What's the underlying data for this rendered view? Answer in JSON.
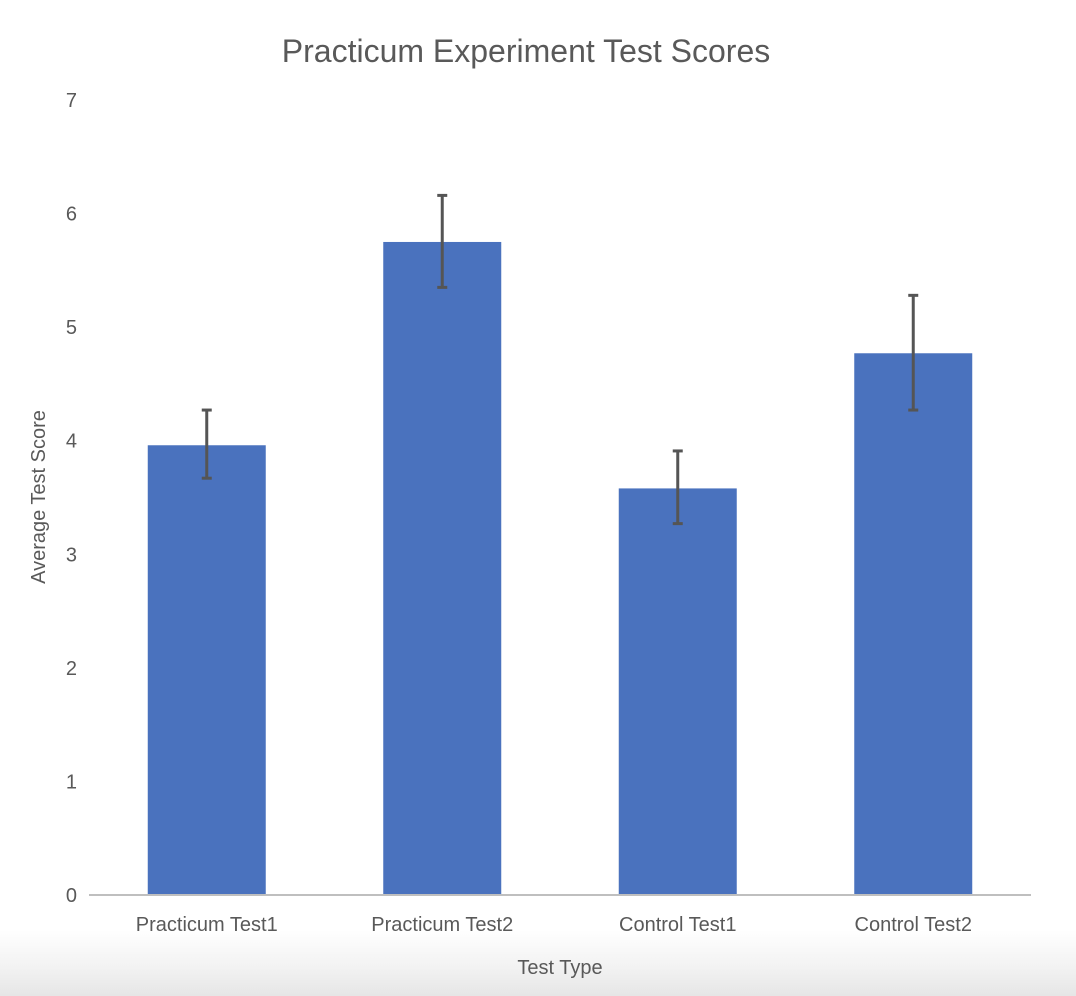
{
  "chart_data": {
    "type": "bar",
    "title": "Practicum Experiment Test Scores",
    "xlabel": "Test Type",
    "ylabel": "Average Test Score",
    "categories": [
      "Practicum Test1",
      "Practicum Test2",
      "Control Test1",
      "Control Test2"
    ],
    "values": [
      3.96,
      5.75,
      3.58,
      4.77
    ],
    "error_bars": {
      "upper": [
        4.27,
        6.16,
        3.91,
        5.28
      ],
      "lower": [
        3.67,
        5.35,
        3.27,
        4.27
      ]
    },
    "ylim": [
      0,
      7
    ],
    "yticks": [
      "0",
      "1",
      "2",
      "3",
      "4",
      "5",
      "6",
      "7"
    ],
    "grid": false,
    "legend": "none",
    "colors": {
      "bar": "#4a72be",
      "error_bar": "#555555",
      "axis": "#bfbfbf",
      "text": "#595959"
    }
  }
}
